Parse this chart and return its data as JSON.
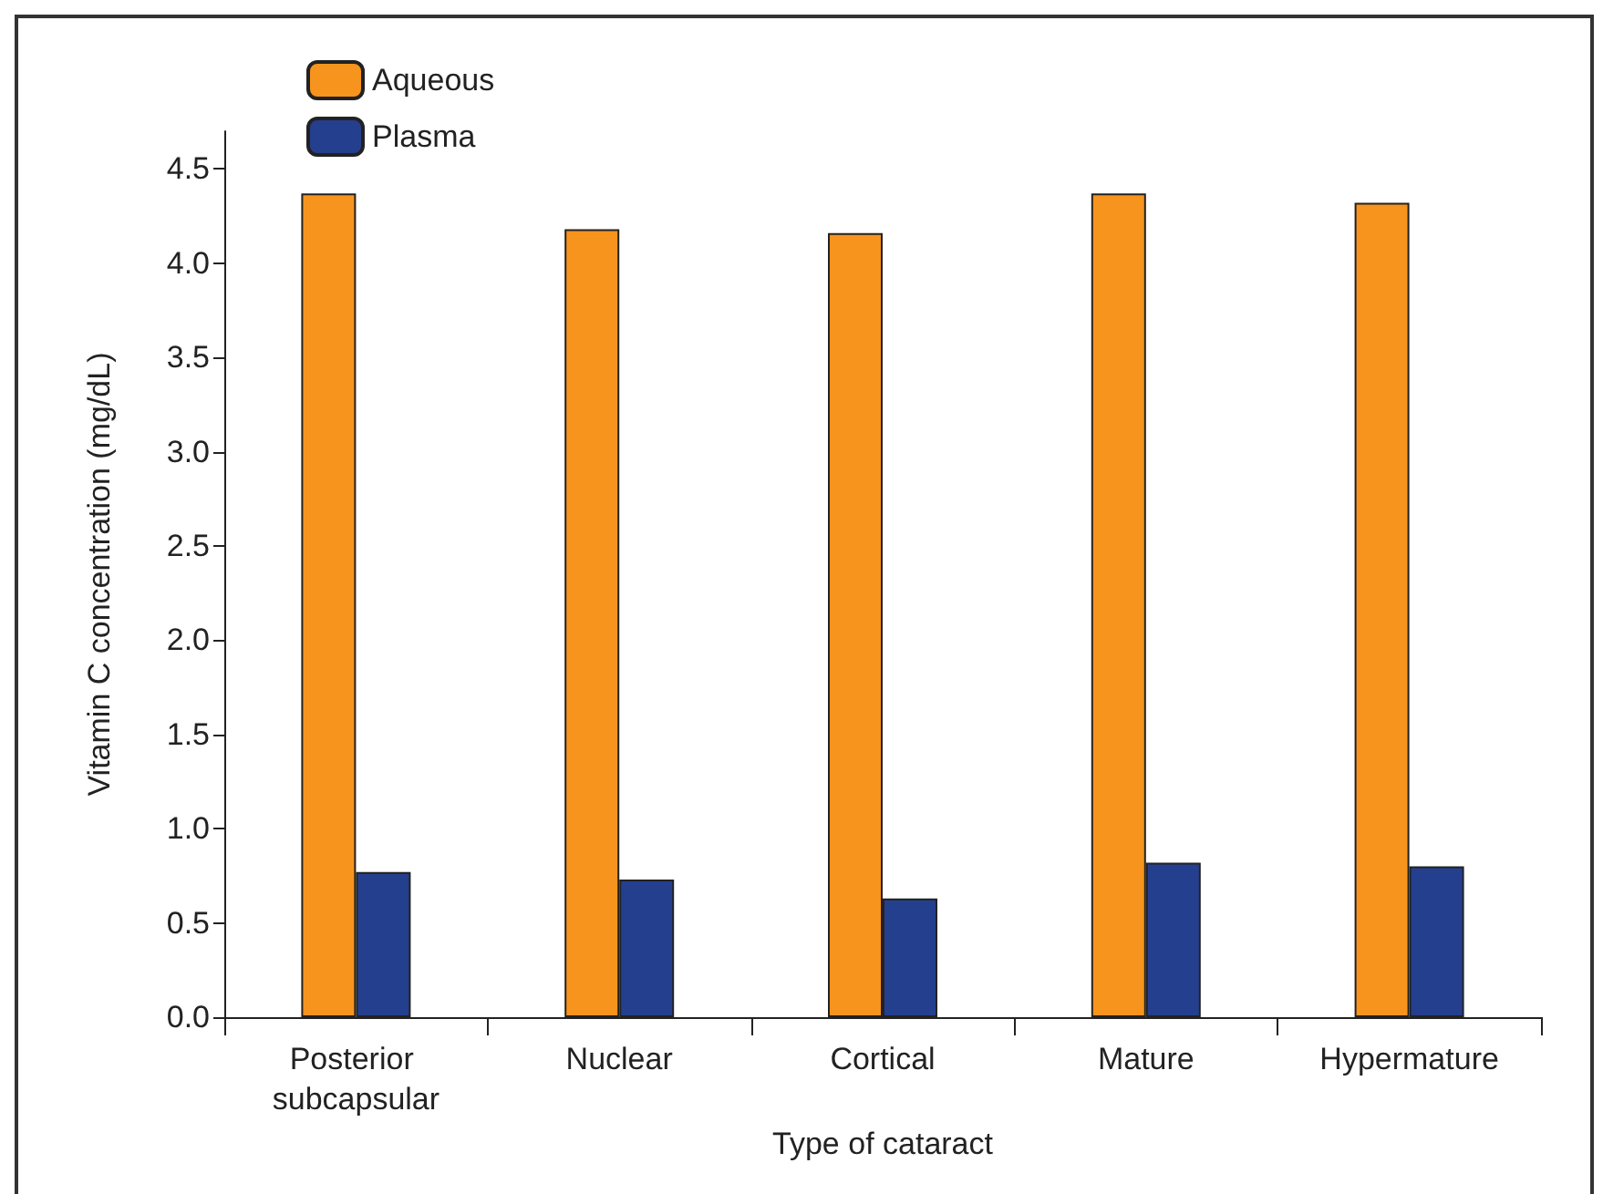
{
  "chart_data": {
    "type": "bar",
    "xlabel": "Type of cataract",
    "ylabel": "Vitamin C concentration (mg/dL)",
    "categories": [
      "Posterior subcapsular",
      "Nuclear",
      "Cortical",
      "Mature",
      "Hypermature"
    ],
    "series": [
      {
        "name": "Aqueous",
        "color": "#f7941d",
        "values": [
          4.37,
          4.18,
          4.16,
          4.37,
          4.32
        ]
      },
      {
        "name": "Plasma",
        "color": "#253f8f",
        "values": [
          0.77,
          0.73,
          0.63,
          0.82,
          0.8
        ]
      }
    ],
    "ylim": [
      0,
      4.7
    ],
    "yticks": [
      {
        "value": 0,
        "label": "0.0"
      },
      {
        "value": 0.5,
        "label": "0.5"
      },
      {
        "value": 1,
        "label": "1.0"
      },
      {
        "value": 1.5,
        "label": "1.5"
      },
      {
        "value": 2,
        "label": "2.0"
      },
      {
        "value": 2.5,
        "label": "2.5"
      },
      {
        "value": 3,
        "label": "3.0"
      },
      {
        "value": 3.5,
        "label": "3.5"
      },
      {
        "value": 4,
        "label": "4.0"
      },
      {
        "value": 4.5,
        "label": "4.5"
      }
    ],
    "grid": false,
    "legend": "top left"
  }
}
